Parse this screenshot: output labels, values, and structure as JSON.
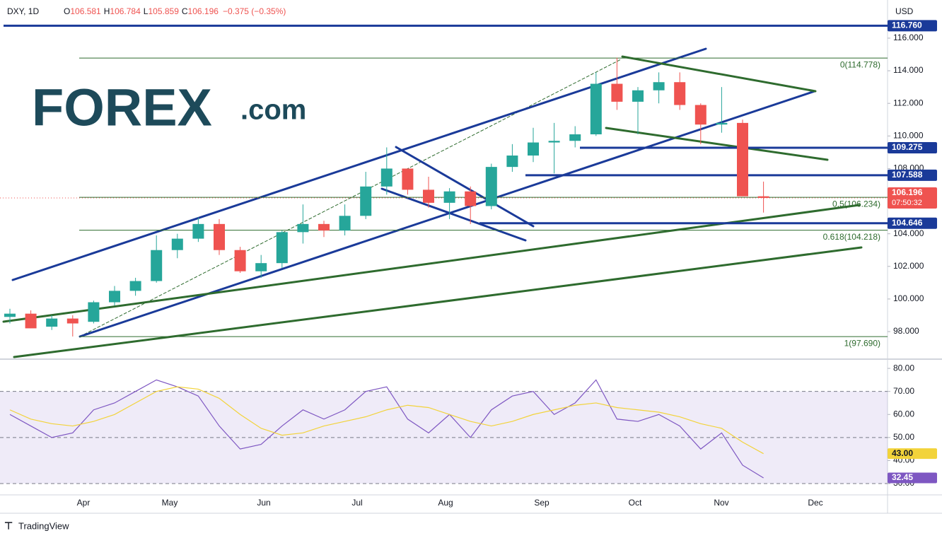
{
  "header": {
    "symbol": "DXY, 1D",
    "open": {
      "label": "O",
      "value": "106.581"
    },
    "high": {
      "label": "H",
      "value": "106.784"
    },
    "low": {
      "label": "L",
      "value": "105.859"
    },
    "close": {
      "label": "C",
      "value": "106.196"
    },
    "change": "−0.375 (−0.35%)",
    "currency": "USD"
  },
  "logo": {
    "brand": "FOREX",
    "suffix": ".com"
  },
  "footer": "TradingView",
  "chart_data": [
    {
      "type": "candlestick",
      "categories": [
        null,
        null,
        null,
        null,
        null,
        null,
        null,
        null,
        null,
        null,
        null,
        null,
        null,
        null,
        null,
        null,
        null,
        null,
        null,
        null,
        null,
        null,
        null,
        null,
        null,
        null,
        null,
        null,
        null,
        null,
        null,
        null,
        null,
        null,
        null,
        null,
        null
      ],
      "open": [
        98.9,
        99.1,
        98.3,
        98.8,
        98.6,
        99.8,
        100.5,
        101.1,
        103.0,
        103.7,
        104.6,
        103.0,
        101.7,
        102.2,
        104.1,
        104.6,
        104.2,
        105.1,
        106.9,
        108.0,
        106.7,
        105.9,
        106.6,
        105.7,
        108.1,
        108.8,
        109.6,
        109.7,
        110.1,
        113.2,
        112.1,
        112.8,
        113.3,
        111.9,
        110.7,
        110.8,
        106.3
      ],
      "high": [
        99.4,
        99.3,
        99.0,
        99.0,
        99.9,
        100.8,
        101.3,
        103.9,
        104.0,
        105.0,
        104.9,
        103.2,
        102.7,
        104.2,
        105.8,
        104.8,
        105.8,
        107.8,
        109.3,
        108.0,
        107.5,
        106.8,
        106.9,
        108.3,
        109.5,
        110.5,
        110.8,
        110.6,
        113.9,
        114.8,
        113.0,
        113.9,
        113.9,
        112.0,
        113.0,
        111.0,
        107.2
      ],
      "low": [
        98.5,
        98.2,
        98.1,
        97.7,
        98.5,
        99.6,
        100.2,
        101.0,
        102.5,
        103.5,
        102.7,
        101.6,
        101.3,
        101.9,
        103.4,
        103.8,
        103.9,
        104.9,
        106.4,
        106.4,
        105.6,
        104.9,
        104.6,
        105.5,
        107.8,
        108.4,
        107.7,
        109.3,
        110.0,
        111.6,
        110.1,
        112.0,
        111.6,
        109.5,
        110.2,
        106.3,
        105.3
      ],
      "close": [
        99.1,
        98.2,
        98.8,
        98.5,
        99.8,
        100.5,
        101.1,
        103.0,
        103.7,
        104.6,
        103.0,
        101.7,
        102.2,
        104.1,
        104.6,
        104.2,
        105.1,
        106.9,
        108.0,
        106.7,
        105.9,
        106.6,
        105.7,
        108.1,
        108.8,
        109.6,
        109.7,
        110.1,
        113.2,
        112.1,
        112.8,
        113.3,
        111.9,
        110.7,
        110.8,
        106.3,
        106.2
      ],
      "up_color": "#26a69a",
      "down_color": "#ef5350",
      "ylim": [
        96.31,
        118.34
      ],
      "yticks": [
        {
          "value": 98,
          "label": "98.000"
        },
        {
          "value": 100,
          "label": "100.000"
        },
        {
          "value": 102,
          "label": "102.000"
        },
        {
          "value": 104,
          "label": "104.000"
        },
        {
          "value": 106,
          "label": "106.000"
        },
        {
          "value": 108,
          "label": "108.000"
        },
        {
          "value": 110,
          "label": "110.000"
        },
        {
          "value": 112,
          "label": "112.000"
        },
        {
          "value": 114,
          "label": "114.000"
        },
        {
          "value": 116,
          "label": "116.000"
        }
      ],
      "xtick_labels": [
        "Apr",
        "May",
        "Jun",
        "Jul",
        "Aug",
        "Sep",
        "Oct",
        "Nov",
        "Dec"
      ],
      "levels": [
        {
          "value": 116.76,
          "label": "116.760"
        },
        {
          "value": 109.275,
          "label": "109.275"
        },
        {
          "value": 107.588,
          "label": "107.588"
        },
        {
          "value": 104.646,
          "label": "104.646"
        }
      ],
      "level_color": "#1a3a99",
      "fib_levels": [
        {
          "value": 114.778,
          "label": "0(114.778)"
        },
        {
          "value": 106.234,
          "label": "0.5(106.234)"
        },
        {
          "value": 104.218,
          "label": "0.618(104.218)"
        },
        {
          "value": 97.69,
          "label": "1(97.690)"
        }
      ],
      "fib_color": "#2e6b2e",
      "last_price": {
        "value": 106.196,
        "label": "106.196"
      },
      "countdown": "07:50:32"
    },
    {
      "type": "line",
      "series": [
        {
          "color": "#7e57c2",
          "values": [
            60,
            55,
            50,
            52,
            62,
            65,
            70,
            75,
            72,
            68,
            55,
            45,
            47,
            55,
            62,
            58,
            62,
            70,
            72,
            58,
            52,
            60,
            50,
            62,
            68,
            70,
            60,
            65,
            75,
            58,
            57,
            60,
            55,
            45,
            52,
            38,
            32.45
          ],
          "last_label": "32.45"
        },
        {
          "color": "#f2d33a",
          "values": [
            62,
            58,
            56,
            55,
            57,
            60,
            65,
            70,
            72,
            71,
            67,
            60,
            54,
            51,
            52,
            55,
            57,
            59,
            62,
            64,
            63,
            60,
            57,
            55,
            57,
            60,
            62,
            64,
            65,
            63,
            62,
            61,
            59,
            56,
            54,
            48,
            43
          ],
          "last_label": "43.00"
        }
      ],
      "ylim": [
        25.1,
        83.4
      ],
      "yticks": [
        {
          "value": 30,
          "label": "30.00"
        },
        {
          "value": 40,
          "label": "40.00"
        },
        {
          "value": 50,
          "label": "50.00"
        },
        {
          "value": 60,
          "label": "60.00"
        },
        {
          "value": 70,
          "label": "70.00"
        },
        {
          "value": 80,
          "label": "80.00"
        }
      ],
      "band": [
        30,
        70
      ],
      "levels": [
        30,
        50,
        70
      ]
    }
  ]
}
